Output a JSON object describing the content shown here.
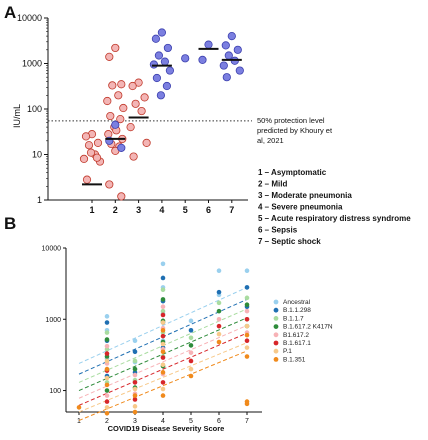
{
  "chart_data": [
    {
      "panel": "A",
      "type": "scatter",
      "ylabel": "IU/mL",
      "yscale": "log",
      "ylim": [
        1,
        10000
      ],
      "yticks": [
        "1",
        "10",
        "100",
        "1000",
        "10000"
      ],
      "categories": [
        "1",
        "2",
        "3",
        "4",
        "5",
        "6",
        "7"
      ],
      "reference_line": {
        "value": 55,
        "style": "dotted",
        "label_lines": [
          "50% protection level",
          "predicted by Khoury et",
          "al, 2021"
        ]
      },
      "colors": {
        "pink_fill": "#f3b5b5",
        "pink_stroke": "#c0392b",
        "blue_fill": "#7b7fe0",
        "blue_stroke": "#3b3fae"
      },
      "median_lines": [
        {
          "x": 1,
          "y": 2.2
        },
        {
          "x": 2,
          "y": 22
        },
        {
          "x": 3,
          "y": 65
        },
        {
          "x": 4,
          "y": 900
        },
        {
          "x": 6,
          "y": 2100
        },
        {
          "x": 7,
          "y": 1200
        }
      ],
      "series": [
        {
          "color": "pink",
          "points": [
            [
              1,
              28
            ],
            [
              1,
              25
            ],
            [
              1,
              18
            ],
            [
              1,
              16
            ],
            [
              1,
              10
            ],
            [
              1,
              8
            ],
            [
              1,
              7
            ],
            [
              1,
              2.8
            ],
            [
              1,
              8.5
            ],
            [
              1,
              11
            ],
            [
              2,
              2200
            ],
            [
              2,
              1400
            ],
            [
              2,
              350
            ],
            [
              2,
              330
            ],
            [
              2,
              200
            ],
            [
              2,
              150
            ],
            [
              2,
              105
            ],
            [
              2,
              70
            ],
            [
              2,
              60
            ],
            [
              2,
              40
            ],
            [
              2,
              34
            ],
            [
              2,
              28
            ],
            [
              2,
              22
            ],
            [
              2,
              17
            ],
            [
              2,
              15
            ],
            [
              2,
              12
            ],
            [
              2,
              2.2
            ],
            [
              2,
              1.2
            ],
            [
              3,
              380
            ],
            [
              3,
              320
            ],
            [
              3,
              180
            ],
            [
              3,
              130
            ],
            [
              3,
              90
            ],
            [
              3,
              40
            ],
            [
              3,
              18
            ],
            [
              3,
              9
            ]
          ]
        },
        {
          "color": "blue",
          "points": [
            [
              2,
              45
            ],
            [
              2,
              20
            ],
            [
              2,
              14
            ],
            [
              4,
              4800
            ],
            [
              4,
              3500
            ],
            [
              4,
              2200
            ],
            [
              4,
              1500
            ],
            [
              4,
              1100
            ],
            [
              4,
              950
            ],
            [
              4,
              700
            ],
            [
              4,
              480
            ],
            [
              4,
              320
            ],
            [
              4,
              200
            ],
            [
              5,
              1300
            ],
            [
              6,
              2600
            ],
            [
              6,
              1200
            ],
            [
              7,
              4000
            ],
            [
              7,
              2500
            ],
            [
              7,
              2000
            ],
            [
              7,
              1500
            ],
            [
              7,
              1150
            ],
            [
              7,
              900
            ],
            [
              7,
              700
            ],
            [
              7,
              500
            ]
          ]
        }
      ],
      "legend": [
        "1 – Asymptomatic",
        "2 – Mild",
        "3 – Moderate pneumonia",
        "4 – Severe pneumonia",
        "5 – Acute respiratory distress syndrome",
        "6 – Sepsis",
        "7 – Septic shock"
      ]
    },
    {
      "panel": "B",
      "type": "scatter",
      "xlabel": "COVID19 Disease Severity Score",
      "yscale": "log",
      "ylim": [
        50,
        10000
      ],
      "yticks": [
        "100",
        "1000",
        "10000"
      ],
      "x": [
        "1",
        "2",
        "3",
        "4",
        "5",
        "6",
        "7"
      ],
      "series": [
        {
          "name": "Ancestral",
          "color": "#9ad0ee",
          "trend": [
            240,
            2800
          ],
          "points": [
            [
              2,
              280
            ],
            [
              2,
              700
            ],
            [
              2,
              1100
            ],
            [
              3,
              500
            ],
            [
              3,
              250
            ],
            [
              4,
              6000
            ],
            [
              4,
              2800
            ],
            [
              4,
              1800
            ],
            [
              4,
              1200
            ],
            [
              4,
              500
            ],
            [
              5,
              950
            ],
            [
              6,
              4800
            ],
            [
              6,
              2200
            ],
            [
              7,
              4800
            ],
            [
              7,
              2800
            ]
          ]
        },
        {
          "name": "B.1.1.298",
          "color": "#1f6fb2",
          "trend": [
            170,
            1900
          ],
          "points": [
            [
              2,
              160
            ],
            [
              2,
              500
            ],
            [
              2,
              900
            ],
            [
              3,
              350
            ],
            [
              3,
              180
            ],
            [
              4,
              3800
            ],
            [
              4,
              1800
            ],
            [
              4,
              900
            ],
            [
              4,
              400
            ],
            [
              5,
              700
            ],
            [
              6,
              2400
            ],
            [
              7,
              2800
            ],
            [
              7,
              1500
            ]
          ]
        },
        {
          "name": "B.1.1.7",
          "color": "#a9dca0",
          "trend": [
            130,
            1400
          ],
          "points": [
            [
              2,
              130
            ],
            [
              2,
              380
            ],
            [
              2,
              650
            ],
            [
              3,
              260
            ],
            [
              3,
              140
            ],
            [
              4,
              2600
            ],
            [
              4,
              1300
            ],
            [
              4,
              650
            ],
            [
              4,
              300
            ],
            [
              5,
              550
            ],
            [
              6,
              1700
            ],
            [
              7,
              2000
            ],
            [
              7,
              1000
            ]
          ]
        },
        {
          "name": "B.1.617.2 K417N",
          "color": "#2e8b3a",
          "trend": [
            100,
            1050
          ],
          "points": [
            [
              2,
              100
            ],
            [
              2,
              300
            ],
            [
              2,
              520
            ],
            [
              3,
              200
            ],
            [
              3,
              110
            ],
            [
              4,
              1900
            ],
            [
              4,
              950
            ],
            [
              4,
              480
            ],
            [
              4,
              220
            ],
            [
              5,
              430
            ],
            [
              6,
              1300
            ],
            [
              7,
              1600
            ],
            [
              7,
              800
            ]
          ]
        },
        {
          "name": "B1.617.2",
          "color": "#f7b2b6",
          "trend": [
            78,
            820
          ],
          "points": [
            [
              2,
              85
            ],
            [
              2,
              240
            ],
            [
              2,
              420
            ],
            [
              3,
              165
            ],
            [
              3,
              90
            ],
            [
              4,
              1500
            ],
            [
              4,
              750
            ],
            [
              4,
              380
            ],
            [
              4,
              170
            ],
            [
              5,
              340
            ],
            [
              6,
              1000
            ],
            [
              7,
              1300
            ],
            [
              7,
              650
            ]
          ]
        },
        {
          "name": "B.1.617.1",
          "color": "#d7262a",
          "trend": [
            62,
            640
          ],
          "points": [
            [
              2,
              70
            ],
            [
              2,
              190
            ],
            [
              2,
              330
            ],
            [
              3,
              130
            ],
            [
              3,
              75
            ],
            [
              4,
              1150
            ],
            [
              4,
              580
            ],
            [
              4,
              290
            ],
            [
              4,
              130
            ],
            [
              5,
              260
            ],
            [
              6,
              800
            ],
            [
              7,
              1000
            ],
            [
              7,
              500
            ]
          ]
        },
        {
          "name": "P.1",
          "color": "#f7c98a",
          "trend": [
            50,
            470
          ],
          "points": [
            [
              2,
              58
            ],
            [
              2,
              150
            ],
            [
              2,
              260
            ],
            [
              3,
              105
            ],
            [
              3,
              60
            ],
            [
              4,
              900
            ],
            [
              4,
              450
            ],
            [
              4,
              230
            ],
            [
              4,
              105
            ],
            [
              5,
              200
            ],
            [
              6,
              620
            ],
            [
              7,
              800
            ],
            [
              7,
              400
            ]
          ]
        },
        {
          "name": "B.1.351",
          "color": "#f08a1c",
          "trend": [
            38,
            360
          ],
          "points": [
            [
              1,
              58
            ],
            [
              2,
              48
            ],
            [
              2,
              120
            ],
            [
              2,
              200
            ],
            [
              3,
              85
            ],
            [
              3,
              50
            ],
            [
              4,
              700
            ],
            [
              4,
              350
            ],
            [
              4,
              180
            ],
            [
              4,
              85
            ],
            [
              5,
              160
            ],
            [
              6,
              480
            ],
            [
              7,
              600
            ],
            [
              7,
              300
            ],
            [
              7,
              70
            ],
            [
              7,
              65
            ]
          ]
        }
      ]
    }
  ],
  "panels": {
    "a": "A",
    "b": "B"
  }
}
